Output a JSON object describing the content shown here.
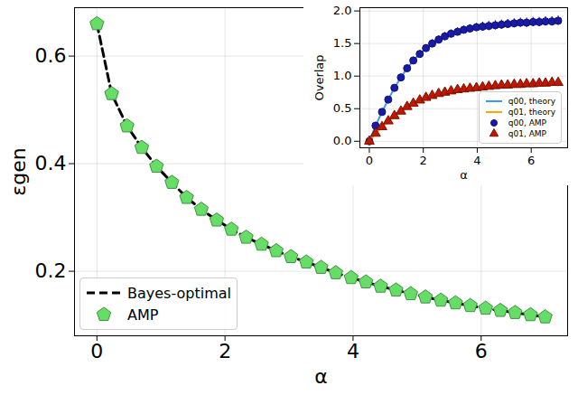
{
  "chart_data": [
    {
      "type": "line",
      "x_label": "α",
      "y_label": "εgen",
      "xlim": [
        -0.35,
        7.35
      ],
      "ylim": [
        0.08,
        0.69
      ],
      "xticks": [
        0,
        2,
        4,
        6
      ],
      "yticks": [
        0.2,
        0.4,
        0.6
      ],
      "grid": true,
      "legend": "lower left",
      "x": [
        0,
        0.23,
        0.47,
        0.7,
        0.93,
        1.17,
        1.4,
        1.63,
        1.87,
        2.1,
        2.33,
        2.57,
        2.8,
        3.03,
        3.27,
        3.5,
        3.73,
        3.97,
        4.2,
        4.43,
        4.67,
        4.9,
        5.13,
        5.37,
        5.6,
        5.83,
        6.07,
        6.3,
        6.53,
        6.77,
        7.0
      ],
      "series": [
        {
          "name": "Bayes-optimal",
          "type": "line",
          "line_style": "dashed",
          "color": "#000000",
          "values": [
            0.66,
            0.53,
            0.47,
            0.43,
            0.395,
            0.365,
            0.337,
            0.315,
            0.295,
            0.278,
            0.263,
            0.25,
            0.238,
            0.227,
            0.217,
            0.207,
            0.197,
            0.188,
            0.18,
            0.172,
            0.165,
            0.158,
            0.152,
            0.146,
            0.141,
            0.136,
            0.131,
            0.127,
            0.123,
            0.119,
            0.115
          ]
        },
        {
          "name": "AMP",
          "type": "scatter",
          "marker": "pentagon",
          "color": "#66dd66",
          "values": [
            0.66,
            0.53,
            0.47,
            0.43,
            0.395,
            0.365,
            0.337,
            0.315,
            0.295,
            0.278,
            0.263,
            0.25,
            0.238,
            0.227,
            0.217,
            0.207,
            0.197,
            0.188,
            0.18,
            0.172,
            0.165,
            0.158,
            0.152,
            0.146,
            0.141,
            0.136,
            0.131,
            0.127,
            0.123,
            0.119,
            0.115
          ],
          "errors": [
            0.008,
            0.006,
            0.006,
            0.006,
            0.006,
            0.006,
            0.006,
            0.006,
            0.006,
            0.006,
            0.006,
            0.006,
            0.006,
            0.006,
            0.006,
            0.006,
            0.006,
            0.006,
            0.006,
            0.006,
            0.006,
            0.006,
            0.006,
            0.006,
            0.006,
            0.006,
            0.006,
            0.006,
            0.006,
            0.006,
            0.006
          ]
        }
      ]
    },
    {
      "type": "line",
      "x_label": "α",
      "y_label": "Overlap",
      "xlim": [
        -0.35,
        7.35
      ],
      "ylim": [
        -0.1,
        2.05
      ],
      "xticks": [
        0,
        2,
        4,
        6
      ],
      "yticks": [
        {
          "value": 0,
          "label": "0.0"
        },
        0.5,
        {
          "value": 1,
          "label": "1.0"
        },
        1.5,
        {
          "value": 2,
          "label": "2.0"
        }
      ],
      "grid": true,
      "legend": "lower right",
      "x": [
        0,
        0.23,
        0.47,
        0.7,
        0.93,
        1.17,
        1.4,
        1.63,
        1.87,
        2.1,
        2.33,
        2.57,
        2.8,
        3.03,
        3.27,
        3.5,
        3.73,
        3.97,
        4.2,
        4.43,
        4.67,
        4.9,
        5.13,
        5.37,
        5.6,
        5.83,
        6.07,
        6.3,
        6.53,
        6.77,
        7.0
      ],
      "series": [
        {
          "name": "q00, theory",
          "type": "line",
          "line_style": "solid",
          "color": "#3a9bff",
          "values": [
            0,
            0.24,
            0.45,
            0.64,
            0.82,
            0.98,
            1.12,
            1.24,
            1.34,
            1.43,
            1.5,
            1.56,
            1.61,
            1.65,
            1.68,
            1.71,
            1.73,
            1.75,
            1.76,
            1.77,
            1.78,
            1.79,
            1.8,
            1.81,
            1.82,
            1.82,
            1.83,
            1.83,
            1.84,
            1.84,
            1.85
          ]
        },
        {
          "name": "q01, theory",
          "type": "line",
          "line_style": "solid",
          "color": "#ffa500",
          "values": [
            0,
            0.12,
            0.22,
            0.31,
            0.39,
            0.46,
            0.53,
            0.58,
            0.63,
            0.67,
            0.7,
            0.73,
            0.75,
            0.77,
            0.79,
            0.8,
            0.81,
            0.82,
            0.83,
            0.84,
            0.85,
            0.86,
            0.86,
            0.87,
            0.87,
            0.88,
            0.88,
            0.89,
            0.89,
            0.9,
            0.9
          ]
        },
        {
          "name": "q00, AMP",
          "type": "scatter",
          "marker": "circle",
          "color": "#1a1aa8",
          "values": [
            0,
            0.24,
            0.45,
            0.64,
            0.82,
            0.98,
            1.12,
            1.24,
            1.34,
            1.43,
            1.5,
            1.56,
            1.61,
            1.65,
            1.68,
            1.71,
            1.73,
            1.75,
            1.76,
            1.77,
            1.78,
            1.79,
            1.8,
            1.81,
            1.82,
            1.82,
            1.83,
            1.83,
            1.84,
            1.84,
            1.85
          ],
          "errors": [
            0,
            0.02,
            0.03,
            0.03,
            0.04,
            0.04,
            0.05,
            0.05,
            0.05,
            0.05,
            0.06,
            0.06,
            0.06,
            0.06,
            0.06,
            0.06,
            0.06,
            0.06,
            0.07,
            0.07,
            0.07,
            0.07,
            0.07,
            0.07,
            0.07,
            0.07,
            0.07,
            0.07,
            0.07,
            0.07,
            0.07
          ]
        },
        {
          "name": "q01, AMP",
          "type": "scatter",
          "marker": "triangle",
          "color": "#c01800",
          "values": [
            0,
            0.12,
            0.22,
            0.31,
            0.39,
            0.46,
            0.53,
            0.58,
            0.63,
            0.67,
            0.7,
            0.73,
            0.75,
            0.77,
            0.79,
            0.8,
            0.81,
            0.82,
            0.83,
            0.84,
            0.85,
            0.86,
            0.86,
            0.87,
            0.87,
            0.88,
            0.88,
            0.89,
            0.89,
            0.9,
            0.9
          ],
          "errors": [
            0,
            0.01,
            0.02,
            0.02,
            0.03,
            0.03,
            0.03,
            0.04,
            0.04,
            0.04,
            0.04,
            0.05,
            0.05,
            0.05,
            0.05,
            0.05,
            0.05,
            0.05,
            0.05,
            0.05,
            0.05,
            0.05,
            0.06,
            0.06,
            0.06,
            0.06,
            0.06,
            0.06,
            0.06,
            0.06,
            0.06
          ]
        }
      ]
    }
  ]
}
